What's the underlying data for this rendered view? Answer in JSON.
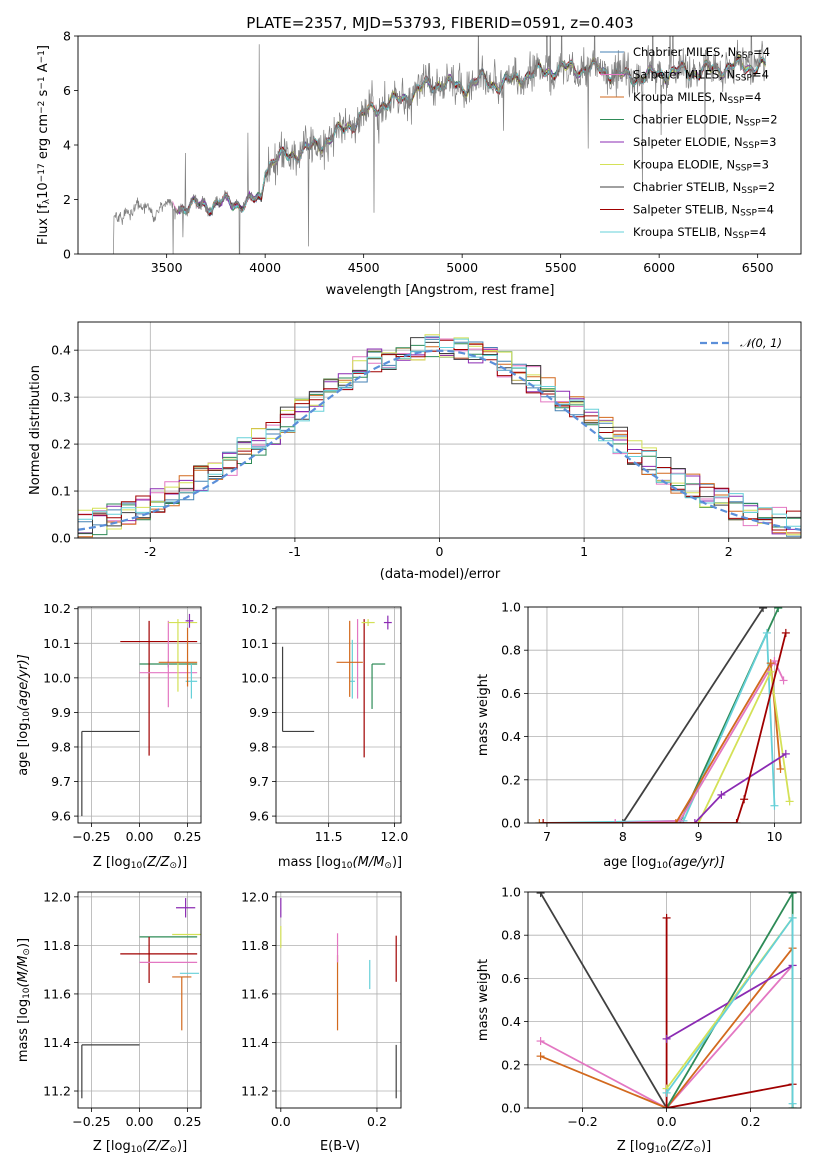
{
  "colors": {
    "chabrier_miles": "#4682b4",
    "salpeter_miles": "#e377c2",
    "kroupa_miles": "#d2691e",
    "chabrier_elodie": "#2e8b57",
    "salpeter_elodie": "#8b2bb3",
    "kroupa_elodie": "#d4e157",
    "chabrier_stelib": "#404040",
    "salpeter_stelib": "#a00000",
    "kroupa_stelib": "#66d0d8",
    "data": "#808080",
    "normal_curve": "#5b8fd9"
  },
  "chart_data": [
    {
      "id": "spectrum",
      "type": "line",
      "title": "PLATE=2357, MJD=53793, FIBERID=0591, z=0.403",
      "xlabel": "wavelength [Angstrom, rest frame]",
      "ylabel": "Flux [f",
      "ylabel_parts": [
        "Flux [f",
        "λ",
        "10",
        "−17",
        " erg cm",
        "−2",
        " s",
        "−1",
        " A",
        "−1",
        "]"
      ],
      "xlim": [
        3050,
        6720
      ],
      "ylim": [
        0,
        8
      ],
      "xticks": [
        3500,
        4000,
        4500,
        5000,
        5500,
        6000,
        6500
      ],
      "yticks": [
        0,
        2,
        4,
        6,
        8
      ],
      "data_start_x": 3230,
      "legend_position": "right",
      "legend": [
        {
          "label": "Chabrier MILES, N",
          "sub": "SSP",
          "suffix": "=4",
          "color": "#4682b4"
        },
        {
          "label": "Salpeter MILES, N",
          "sub": "SSP",
          "suffix": "=4",
          "color": "#e377c2"
        },
        {
          "label": "Kroupa MILES, N",
          "sub": "SSP",
          "suffix": "=4",
          "color": "#d2691e"
        },
        {
          "label": "Chabrier ELODIE, N",
          "sub": "SSP",
          "suffix": "=2",
          "color": "#2e8b57"
        },
        {
          "label": "Salpeter ELODIE, N",
          "sub": "SSP",
          "suffix": "=3",
          "color": "#8b2bb3"
        },
        {
          "label": "Kroupa ELODIE, N",
          "sub": "SSP",
          "suffix": "=3",
          "color": "#d4e157"
        },
        {
          "label": "Chabrier STELIB, N",
          "sub": "SSP",
          "suffix": "=2",
          "color": "#404040"
        },
        {
          "label": "Salpeter STELIB, N",
          "sub": "SSP",
          "suffix": "=4",
          "color": "#a00000"
        },
        {
          "label": "Kroupa STELIB, N",
          "sub": "SSP",
          "suffix": "=4",
          "color": "#66d0d8"
        }
      ],
      "continuum": [
        [
          3230,
          0.0
        ],
        [
          3232,
          1.1
        ],
        [
          3260,
          1.5
        ],
        [
          3300,
          1.6
        ],
        [
          3400,
          1.65
        ],
        [
          3500,
          1.7
        ],
        [
          3600,
          1.75
        ],
        [
          3700,
          1.8
        ],
        [
          3800,
          1.85
        ],
        [
          3900,
          1.9
        ],
        [
          3980,
          2.0
        ],
        [
          4000,
          3.2
        ],
        [
          4100,
          3.6
        ],
        [
          4200,
          3.8
        ],
        [
          4300,
          4.1
        ],
        [
          4400,
          4.6
        ],
        [
          4500,
          5.1
        ],
        [
          4600,
          5.5
        ],
        [
          4700,
          5.7
        ],
        [
          4800,
          6.1
        ],
        [
          4900,
          6.3
        ],
        [
          5000,
          6.1
        ],
        [
          5100,
          6.4
        ],
        [
          5200,
          6.2
        ],
        [
          5300,
          6.5
        ],
        [
          5400,
          6.7
        ],
        [
          5500,
          6.8
        ],
        [
          5600,
          6.8
        ],
        [
          5700,
          6.8
        ],
        [
          5800,
          6.5
        ],
        [
          5900,
          6.5
        ],
        [
          6000,
          6.6
        ],
        [
          6100,
          6.7
        ],
        [
          6200,
          6.7
        ],
        [
          6300,
          6.8
        ],
        [
          6400,
          6.9
        ],
        [
          6500,
          6.9
        ],
        [
          6540,
          6.9
        ]
      ]
    },
    {
      "id": "residuals",
      "type": "line",
      "xlabel": "(data-model)/error",
      "ylabel": "Normed distribution",
      "xlim": [
        -2.5,
        2.5
      ],
      "ylim": [
        0,
        0.46
      ],
      "xticks": [
        -2,
        -1,
        0,
        1,
        2
      ],
      "yticks": [
        0.0,
        0.1,
        0.2,
        0.3,
        0.4
      ],
      "legend_position": "top-right",
      "legend": [
        {
          "label": "𝒩(0, 1)",
          "color": "#5b8fd9"
        }
      ]
    },
    {
      "id": "age-vs-z",
      "type": "scatter",
      "xlabel": "Z [log",
      "xlabel_parts": [
        "Z [log",
        "10",
        "(Z/Z",
        "⊙",
        ")]"
      ],
      "ylabel_parts": [
        "age  [log",
        "10",
        "(age/yr)]"
      ],
      "xlim": [
        -0.32,
        0.32
      ],
      "ylim": [
        9.58,
        10.205
      ],
      "xticks": [
        -0.25,
        0.0,
        0.25
      ],
      "xtick_labels": [
        "−0.25",
        "0.00",
        "0.25"
      ],
      "yticks": [
        9.6,
        9.7,
        9.8,
        9.9,
        10.0,
        10.1,
        10.2
      ],
      "points": [
        {
          "color": "#404040",
          "x": -0.3,
          "y": 9.845,
          "xerr": [
            0,
            0.3
          ],
          "yerr": [
            0.245,
            0
          ]
        },
        {
          "color": "#2e8b57",
          "x": 0.15,
          "y": 10.04,
          "xerr": [
            0.15,
            0.15
          ],
          "yerr": [
            0.01,
            0.01
          ]
        },
        {
          "color": "#a00000",
          "x": 0.05,
          "y": 10.105,
          "xerr": [
            0.15,
            0.25
          ],
          "yerr": [
            0.33,
            0.06
          ]
        },
        {
          "color": "#e377c2",
          "x": 0.15,
          "y": 10.015,
          "xerr": [
            0.15,
            0.15
          ],
          "yerr": [
            0.1,
            0.15
          ]
        },
        {
          "color": "#d4e157",
          "x": 0.2,
          "y": 10.16,
          "xerr": [
            0.05,
            0.1
          ],
          "yerr": [
            0.2,
            0.01
          ]
        },
        {
          "color": "#8b2bb3",
          "x": 0.26,
          "y": 10.165,
          "xerr": [
            0.02,
            0.02
          ],
          "yerr": [
            0.02,
            0.02
          ]
        },
        {
          "color": "#66d0d8",
          "x": 0.27,
          "y": 9.99,
          "xerr": [
            0.03,
            0.03
          ],
          "yerr": [
            0.05,
            0.05
          ]
        },
        {
          "color": "#d2691e",
          "x": 0.25,
          "y": 10.045,
          "xerr": [
            0.15,
            0.05
          ],
          "yerr": [
            0.07,
            0.1
          ]
        }
      ]
    },
    {
      "id": "age-vs-mass",
      "type": "scatter",
      "xlabel_parts": [
        "mass [log",
        "10",
        "(M/M",
        "⊙",
        ")]"
      ],
      "xlim": [
        11.1,
        12.05
      ],
      "ylim": [
        9.58,
        10.205
      ],
      "xticks": [
        11.5,
        12.0
      ],
      "xtick_labels": [
        "11.5",
        "12.0"
      ],
      "yticks": [
        9.6,
        9.7,
        9.8,
        9.9,
        10.0,
        10.1,
        10.2
      ],
      "points": [
        {
          "color": "#404040",
          "x": 11.15,
          "y": 9.845,
          "xerr": [
            0,
            0.24
          ],
          "yerr": [
            0,
            0.245
          ]
        },
        {
          "color": "#2e8b57",
          "x": 11.83,
          "y": 10.04,
          "xerr": [
            0.0,
            0.1
          ],
          "yerr": [
            0.13,
            0.0
          ]
        },
        {
          "color": "#a00000",
          "x": 11.77,
          "y": 10.04,
          "xerr": [
            0.0,
            0.0
          ],
          "yerr": [
            0.27,
            0.13
          ]
        },
        {
          "color": "#e377c2",
          "x": 11.72,
          "y": 10.04,
          "xerr": [
            0.0,
            0.0
          ],
          "yerr": [
            0.1,
            0.13
          ]
        },
        {
          "color": "#d4e157",
          "x": 11.8,
          "y": 10.16,
          "xerr": [
            0.05,
            0.05
          ],
          "yerr": [
            0.01,
            0.01
          ]
        },
        {
          "color": "#8b2bb3",
          "x": 11.95,
          "y": 10.16,
          "xerr": [
            0.03,
            0.03
          ],
          "yerr": [
            0.02,
            0.02
          ]
        },
        {
          "color": "#66d0d8",
          "x": 11.68,
          "y": 9.99,
          "xerr": [
            0.02,
            0.02
          ],
          "yerr": [
            0.05,
            0.12
          ]
        },
        {
          "color": "#d2691e",
          "x": 11.66,
          "y": 10.045,
          "xerr": [
            0.1,
            0.1
          ],
          "yerr": [
            0.1,
            0.12
          ]
        }
      ]
    },
    {
      "id": "weight-vs-age",
      "type": "line",
      "xlabel_parts": [
        "age  [log",
        "10",
        "(age/yr)]"
      ],
      "ylabel": "mass weight",
      "xlim": [
        6.75,
        10.35
      ],
      "ylim": [
        0,
        1
      ],
      "xticks": [
        7,
        8,
        9,
        10
      ],
      "yticks": [
        0.0,
        0.2,
        0.4,
        0.6,
        0.8,
        1.0
      ],
      "series": [
        {
          "color": "#404040",
          "points": [
            [
              8.0,
              0.0
            ],
            [
              9.85,
              0.995
            ]
          ]
        },
        {
          "color": "#2e8b57",
          "points": [
            [
              8.75,
              0.0
            ],
            [
              10.05,
              0.995
            ]
          ]
        },
        {
          "color": "#66d0d8",
          "points": [
            [
              6.9,
              0.0
            ],
            [
              8.8,
              0.01
            ],
            [
              9.9,
              0.88
            ],
            [
              10.0,
              0.08
            ]
          ]
        },
        {
          "color": "#e377c2",
          "points": [
            [
              7.9,
              0.0
            ],
            [
              8.75,
              0.01
            ],
            [
              10.0,
              0.75
            ],
            [
              10.12,
              0.66
            ]
          ]
        },
        {
          "color": "#d2691e",
          "points": [
            [
              6.9,
              0.0
            ],
            [
              8.7,
              0.0
            ],
            [
              9.95,
              0.74
            ],
            [
              10.08,
              0.25
            ]
          ]
        },
        {
          "color": "#d4e157",
          "points": [
            [
              9.0,
              0.0
            ],
            [
              9.95,
              0.7
            ],
            [
              10.2,
              0.1
            ]
          ]
        },
        {
          "color": "#8b2bb3",
          "points": [
            [
              8.95,
              0.0
            ],
            [
              9.3,
              0.13
            ],
            [
              10.15,
              0.32
            ]
          ]
        },
        {
          "color": "#a00000",
          "points": [
            [
              6.95,
              0.0
            ],
            [
              9.5,
              0.0
            ],
            [
              9.6,
              0.11
            ],
            [
              10.15,
              0.88
            ]
          ]
        }
      ]
    },
    {
      "id": "mass-vs-z",
      "type": "scatter",
      "xlabel_parts": [
        "Z [log",
        "10",
        "(Z/Z",
        "⊙",
        ")]"
      ],
      "ylabel_parts": [
        "mass [log",
        "10",
        "(M/M",
        "⊙",
        ")]"
      ],
      "xlim": [
        -0.32,
        0.32
      ],
      "ylim": [
        11.13,
        12.02
      ],
      "xticks": [
        -0.25,
        0.0,
        0.25
      ],
      "xtick_labels": [
        "−0.25",
        "0.00",
        "0.25"
      ],
      "yticks": [
        11.2,
        11.4,
        11.6,
        11.8,
        12.0
      ],
      "yticks_labels": [
        "11.2",
        "11.4",
        "11.6",
        "11.8",
        "12.0"
      ],
      "points": [
        {
          "color": "#404040",
          "x": -0.3,
          "y": 11.39,
          "xerr": [
            0,
            0.3
          ],
          "yerr": [
            0.22,
            0
          ]
        },
        {
          "color": "#2e8b57",
          "x": 0.15,
          "y": 11.835,
          "xerr": [
            0.15,
            0.15
          ],
          "yerr": [
            0.0,
            0.0
          ]
        },
        {
          "color": "#a00000",
          "x": 0.05,
          "y": 11.765,
          "xerr": [
            0.15,
            0.25
          ],
          "yerr": [
            0.12,
            0.07
          ]
        },
        {
          "color": "#e377c2",
          "x": 0.15,
          "y": 11.73,
          "xerr": [
            0.15,
            0.15
          ],
          "yerr": [
            0.0,
            0.0
          ]
        },
        {
          "color": "#d4e157",
          "x": 0.22,
          "y": 11.845,
          "xerr": [
            0.05,
            0.1
          ],
          "yerr": [
            0.0,
            0.0
          ]
        },
        {
          "color": "#8b2bb3",
          "x": 0.24,
          "y": 11.955,
          "xerr": [
            0.05,
            0.05
          ],
          "yerr": [
            0.04,
            0.04
          ]
        },
        {
          "color": "#66d0d8",
          "x": 0.26,
          "y": 11.685,
          "xerr": [
            0.05,
            0.05
          ],
          "yerr": [
            0.0,
            0.0
          ]
        },
        {
          "color": "#d2691e",
          "x": 0.22,
          "y": 11.67,
          "xerr": [
            0.05,
            0.05
          ],
          "yerr": [
            0.22,
            0.0
          ]
        }
      ]
    },
    {
      "id": "mass-vs-ebv",
      "type": "scatter",
      "xlabel": "E(B-V)",
      "xlim": [
        -0.01,
        0.25
      ],
      "ylim": [
        11.13,
        12.02
      ],
      "xticks": [
        0.0,
        0.2
      ],
      "xtick_labels": [
        "0.0",
        "0.2"
      ],
      "yticks": [
        11.2,
        11.4,
        11.6,
        11.8,
        12.0
      ],
      "points": [
        {
          "color": "#8b2bb3",
          "x": 0.0,
          "y": 11.955,
          "yerr": [
            0.04,
            0.04
          ]
        },
        {
          "color": "#d4e157",
          "x": 0.0,
          "y": 11.84,
          "yerr": [
            0.05,
            0.04
          ]
        },
        {
          "color": "#d2691e",
          "x": 0.118,
          "y": 11.58,
          "yerr": [
            0.13,
            0.18
          ]
        },
        {
          "color": "#e377c2",
          "x": 0.118,
          "y": 11.78,
          "yerr": [
            0.05,
            0.07
          ]
        },
        {
          "color": "#66d0d8",
          "x": 0.185,
          "y": 11.68,
          "yerr": [
            0.06,
            0.06
          ]
        },
        {
          "color": "#a00000",
          "x": 0.24,
          "y": 11.75,
          "yerr": [
            0.1,
            0.09
          ]
        },
        {
          "color": "#404040",
          "x": 0.24,
          "y": 11.39,
          "yerr": [
            0.22,
            0.0
          ]
        }
      ]
    },
    {
      "id": "weight-vs-z",
      "type": "line",
      "xlabel_parts": [
        "Z [log",
        "10",
        "(Z/Z",
        "⊙",
        ")]"
      ],
      "ylabel": "mass weight",
      "xlim": [
        -0.33,
        0.32
      ],
      "ylim": [
        0,
        1
      ],
      "xticks": [
        -0.2,
        0.0,
        0.2
      ],
      "xtick_labels": [
        "−0.2",
        "0.0",
        "0.2"
      ],
      "yticks": [
        0.0,
        0.2,
        0.4,
        0.6,
        0.8,
        1.0
      ],
      "series": [
        {
          "color": "#404040",
          "points": [
            [
              -0.3,
              0.995
            ],
            [
              0.0,
              0.0
            ]
          ]
        },
        {
          "color": "#e377c2",
          "points": [
            [
              -0.3,
              0.31
            ],
            [
              0.0,
              0.0
            ],
            [
              0.3,
              0.66
            ]
          ]
        },
        {
          "color": "#d2691e",
          "points": [
            [
              -0.3,
              0.24
            ],
            [
              0.0,
              0.0
            ],
            [
              0.3,
              0.74
            ]
          ]
        },
        {
          "color": "#2e8b57",
          "points": [
            [
              0.0,
              0.0
            ],
            [
              0.0,
              0.0
            ],
            [
              0.3,
              0.995
            ],
            [
              0.3,
              0.0
            ]
          ]
        },
        {
          "color": "#a00000",
          "points": [
            [
              0.0,
              0.88
            ],
            [
              0.0,
              0.0
            ],
            [
              0.3,
              0.11
            ]
          ]
        },
        {
          "color": "#8b2bb3",
          "points": [
            [
              0.0,
              0.32
            ],
            [
              0.3,
              0.66
            ]
          ]
        },
        {
          "color": "#d4e157",
          "points": [
            [
              0.0,
              0.09
            ],
            [
              0.3,
              0.88
            ]
          ]
        },
        {
          "color": "#66d0d8",
          "points": [
            [
              0.0,
              0.07
            ],
            [
              0.3,
              0.88
            ],
            [
              0.3,
              0.02
            ]
          ]
        }
      ]
    }
  ]
}
